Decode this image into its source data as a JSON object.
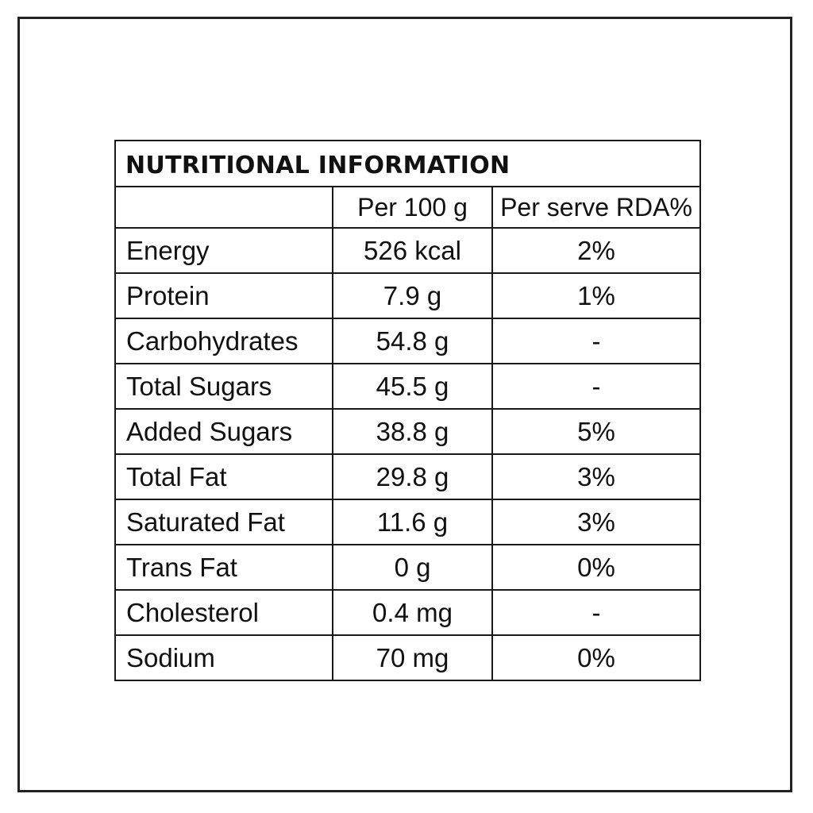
{
  "title": "NUTRITIONAL INFORMATION",
  "columns": [
    "",
    "Per 100 g",
    "Per serve RDA%"
  ],
  "rows": [
    {
      "nutrient": "Energy",
      "per_100g": "526 kcal",
      "rda": "2%"
    },
    {
      "nutrient": "Protein",
      "per_100g": "7.9 g",
      "rda": "1%"
    },
    {
      "nutrient": "Carbohydrates",
      "per_100g": "54.8 g",
      "rda": "-"
    },
    {
      "nutrient": "Total Sugars",
      "per_100g": "45.5 g",
      "rda": "-"
    },
    {
      "nutrient": "Added Sugars",
      "per_100g": "38.8 g",
      "rda": "5%"
    },
    {
      "nutrient": "Total Fat",
      "per_100g": "29.8 g",
      "rda": "3%"
    },
    {
      "nutrient": "Saturated Fat",
      "per_100g": "11.6 g",
      "rda": "3%"
    },
    {
      "nutrient": "Trans Fat",
      "per_100g": "0 g",
      "rda": "0%"
    },
    {
      "nutrient": "Cholesterol",
      "per_100g": "0.4 mg",
      "rda": "-"
    },
    {
      "nutrient": "Sodium",
      "per_100g": "70 mg",
      "rda": "0%"
    }
  ]
}
